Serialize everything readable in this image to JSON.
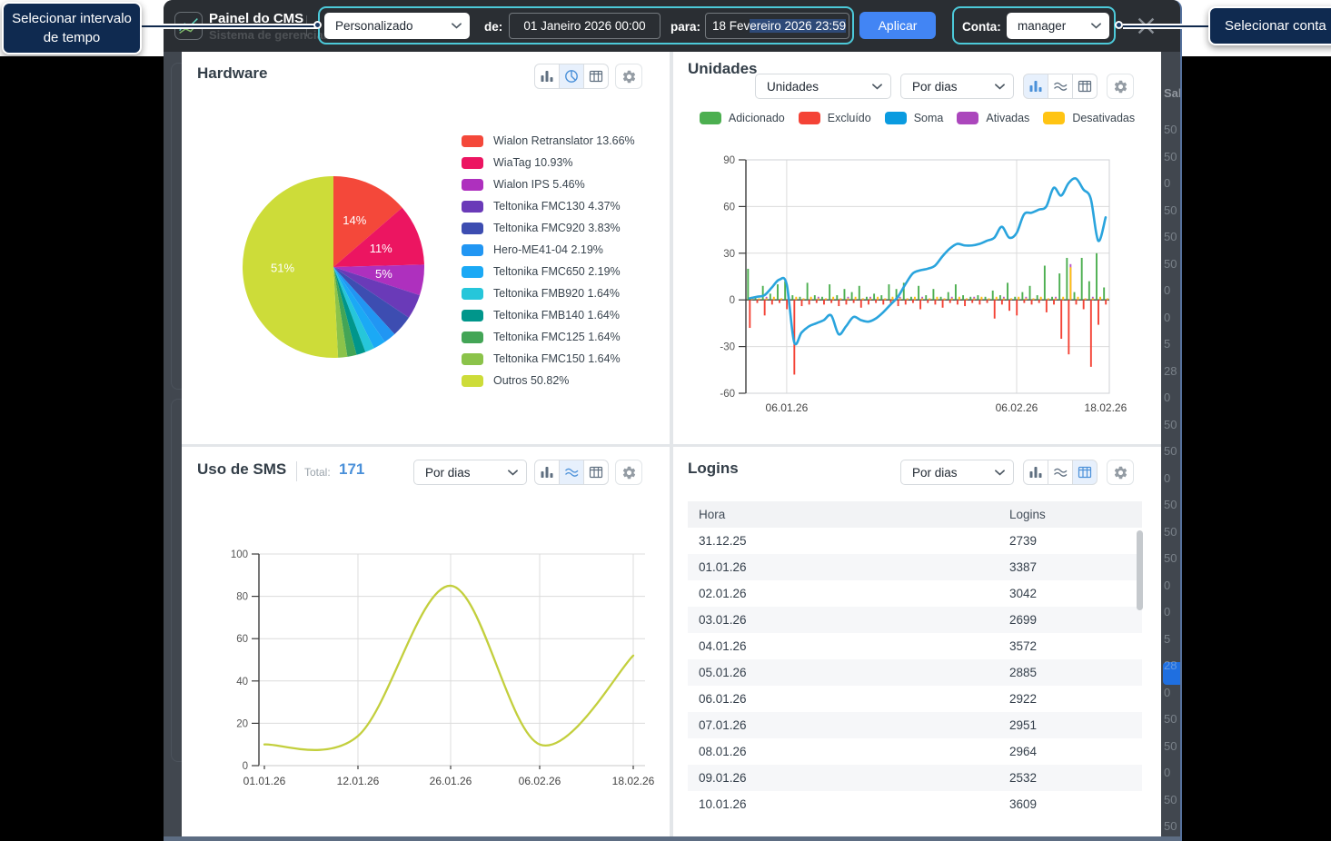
{
  "callouts": {
    "time_range": "Selecionar intervalo de tempo",
    "account": "Selecionar conta"
  },
  "header": {
    "title": "Painel do CMS",
    "ghost_subtitle": "Sistema de gerenciam",
    "period_select": "Personalizado",
    "from_label": "de:",
    "from_value": "01 Janeiro 2026 00:00",
    "to_label": "para:",
    "to_value_start": "18 Fev",
    "to_value_selected": "ereiro 2026 23:59",
    "apply_label": "Aplicar",
    "account_label": "Conta:",
    "account_value": "manager"
  },
  "background_strip": {
    "saldo_header": "Sald",
    "saldo_fragments": [
      "50",
      "50",
      "0",
      "50",
      "50",
      "50",
      "0",
      "0",
      "5",
      "28",
      "0",
      "50",
      "50",
      "0",
      "50",
      "50",
      "50",
      "0",
      "0",
      "5",
      "28",
      "0",
      "50",
      "50",
      "0",
      "50",
      "50"
    ]
  },
  "colors": {
    "accent_blue": "#4285f4",
    "highlight_teal": "#4cc9d9",
    "callout_bg": "#0f2a50",
    "header_bg": "#2a2e33",
    "active_icon": "#4a90d9",
    "active_icon_bg": "#e7f0fc"
  },
  "panels": {
    "hardware": {
      "title": "Hardware",
      "legend": [
        {
          "label": "Wialon Retranslator 13.66%",
          "color": "#f4483a"
        },
        {
          "label": "WiaTag 10.93%",
          "color": "#ec1561"
        },
        {
          "label": "Wialon IPS 5.46%",
          "color": "#ae30be"
        },
        {
          "label": "Teltonika FMC130 4.37%",
          "color": "#6a3ab8"
        },
        {
          "label": "Teltonika FMC920 3.83%",
          "color": "#3d4db1"
        },
        {
          "label": "Hero-ME41-04 2.19%",
          "color": "#2196f3"
        },
        {
          "label": "Teltonika FMC650 2.19%",
          "color": "#1ba9f5"
        },
        {
          "label": "Teltonika FMB920 1.64%",
          "color": "#26c6da"
        },
        {
          "label": "Teltonika FMB140 1.64%",
          "color": "#00968b"
        },
        {
          "label": "Teltonika FMC125 1.64%",
          "color": "#43a556"
        },
        {
          "label": "Teltonika FMC150 1.64%",
          "color": "#8bc34a"
        },
        {
          "label": "Outros 50.82%",
          "color": "#cddc39"
        }
      ],
      "chart_data": {
        "type": "pie",
        "labels": [
          "Wialon Retranslator",
          "WiaTag",
          "Wialon IPS",
          "Teltonika FMC130",
          "Teltonika FMC920",
          "Hero-ME41-04",
          "Teltonika FMC650",
          "Teltonika FMB920",
          "Teltonika FMB140",
          "Teltonika FMC125",
          "Teltonika FMC150",
          "Outros"
        ],
        "values": [
          13.66,
          10.93,
          5.46,
          4.37,
          3.83,
          2.19,
          2.19,
          1.64,
          1.64,
          1.64,
          1.64,
          50.82
        ],
        "colors": [
          "#f4483a",
          "#ec1561",
          "#ae30be",
          "#6a3ab8",
          "#3d4db1",
          "#2196f3",
          "#1ba9f5",
          "#26c6da",
          "#00968b",
          "#43a556",
          "#8bc34a",
          "#cddc39"
        ],
        "slice_labels": [
          "14%",
          "11%",
          "5%",
          "",
          "",
          "",
          "",
          "",
          "",
          "",
          "",
          "51%"
        ]
      }
    },
    "units": {
      "title": "Unidades",
      "metric_select": "Unidades",
      "interval_select": "Por dias",
      "legend": [
        {
          "label": "Adicionado",
          "color": "#4caf50"
        },
        {
          "label": "Excluído",
          "color": "#f44336"
        },
        {
          "label": "Soma",
          "color": "#0a9be0"
        },
        {
          "label": "Ativadas",
          "color": "#ab47bc"
        },
        {
          "label": "Desativadas",
          "color": "#ffc413"
        }
      ],
      "chart_data": {
        "type": "bar+line",
        "days": 49,
        "ylim": [
          -60,
          90
        ],
        "yticks": [
          -60,
          -30,
          0,
          30,
          60,
          90
        ],
        "x_labels": [
          {
            "label": "06.01.26",
            "day": 5
          },
          {
            "label": "06.02.26",
            "day": 36
          },
          {
            "label": "18.02.26",
            "day": 48
          }
        ],
        "series": [
          {
            "name": "Adicionado",
            "type": "bar",
            "color": "#4caf50",
            "values": [
              20,
              2,
              9,
              4,
              10,
              12,
              3,
              2,
              11,
              3,
              2,
              10,
              3,
              7,
              5,
              9,
              2,
              4,
              3,
              10,
              7,
              11,
              2,
              9,
              3,
              7,
              2,
              5,
              10,
              3,
              2,
              3,
              2,
              6,
              3,
              11,
              2,
              5,
              9,
              3,
              22,
              2,
              17,
              27,
              5,
              27,
              12,
              30,
              8
            ]
          },
          {
            "name": "Excluído",
            "type": "bar",
            "color": "#f44336",
            "values": [
              -18,
              -2,
              -10,
              -3,
              -2,
              -6,
              -48,
              -4,
              -3,
              -2,
              -3,
              -2,
              -4,
              -3,
              -2,
              -5,
              -3,
              -2,
              -3,
              -2,
              -4,
              -3,
              -2,
              -6,
              -2,
              -3,
              -5,
              -2,
              -3,
              -4,
              -2,
              -3,
              -2,
              -12,
              -3,
              -7,
              -10,
              -2,
              -3,
              -2,
              -8,
              -3,
              -25,
              -35,
              -3,
              -6,
              -43,
              -16,
              -3
            ]
          },
          {
            "name": "Ativadas",
            "type": "bar",
            "color": "#ba55c8",
            "values": [
              1,
              1,
              2,
              1,
              1,
              2,
              1,
              1,
              1,
              2,
              1,
              1,
              1,
              2,
              1,
              1,
              2,
              1,
              1,
              1,
              2,
              1,
              1,
              2,
              1,
              1,
              1,
              2,
              1,
              1,
              2,
              1,
              1,
              1,
              2,
              1,
              1,
              2,
              1,
              1,
              1,
              2,
              1,
              23,
              1,
              1,
              2,
              1,
              1
            ]
          },
          {
            "name": "Desativadas",
            "type": "bar",
            "color": "#fdc010",
            "values": [
              2,
              1,
              1,
              2,
              1,
              1,
              2,
              1,
              2,
              1,
              1,
              2,
              1,
              1,
              2,
              1,
              1,
              2,
              1,
              2,
              1,
              1,
              2,
              1,
              1,
              2,
              1,
              1,
              2,
              1,
              1,
              2,
              1,
              2,
              1,
              1,
              2,
              1,
              1,
              2,
              1,
              1,
              2,
              21,
              2,
              1,
              1,
              2,
              1
            ]
          },
          {
            "name": "Soma",
            "type": "line",
            "color": "#2aa4dd",
            "values": [
              1,
              2,
              3,
              8,
              13,
              10,
              -27,
              -21,
              -17,
              -15,
              -13,
              -10,
              -22,
              -17,
              -11,
              -13,
              -14,
              -12,
              -8,
              -3,
              2,
              10,
              17,
              19,
              20,
              22,
              28,
              33,
              36,
              35,
              35,
              36,
              38,
              40,
              47,
              40,
              43,
              55,
              56,
              58,
              60,
              72,
              67,
              75,
              78,
              71,
              65,
              38,
              53
            ]
          }
        ]
      }
    },
    "sms": {
      "title": "Uso de SMS",
      "total_label": "Total:",
      "total_value": "171",
      "interval_select": "Por dias",
      "chart_data": {
        "type": "line",
        "x": [
          "01.01.26",
          "12.01.26",
          "26.01.26",
          "06.02.26",
          "18.02.26"
        ],
        "values": [
          10,
          14,
          85,
          10,
          52
        ],
        "ylim": [
          0,
          100
        ],
        "yticks": [
          0,
          20,
          40,
          60,
          80,
          100
        ],
        "color": "#c3cf3d",
        "total": 171
      }
    },
    "logins": {
      "title": "Logins",
      "interval_select": "Por dias",
      "table": {
        "columns": [
          "Hora",
          "Logins"
        ],
        "rows": [
          [
            "31.12.25",
            "2739"
          ],
          [
            "01.01.26",
            "3387"
          ],
          [
            "02.01.26",
            "3042"
          ],
          [
            "03.01.26",
            "2699"
          ],
          [
            "04.01.26",
            "3572"
          ],
          [
            "05.01.26",
            "2885"
          ],
          [
            "06.01.26",
            "2922"
          ],
          [
            "07.01.26",
            "2951"
          ],
          [
            "08.01.26",
            "2964"
          ],
          [
            "09.01.26",
            "2532"
          ],
          [
            "10.01.26",
            "3609"
          ]
        ]
      }
    }
  }
}
